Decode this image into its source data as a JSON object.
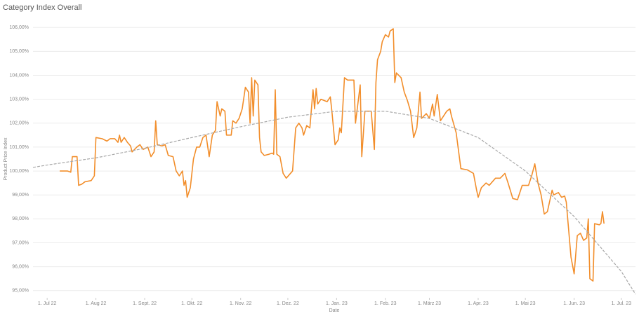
{
  "chart_data": {
    "type": "line",
    "title": "Category Index Overall",
    "x_label": "Date",
    "y_label": "Product Price Index",
    "xlim": [
      "2022-06-22",
      "2023-07-10"
    ],
    "ylim": [
      94.7,
      106.3
    ],
    "grid": true,
    "xticks": [
      {
        "value": "2022-07-01",
        "label": "1. Jul 22"
      },
      {
        "value": "2022-08-01",
        "label": "1. Aug 22"
      },
      {
        "value": "2022-09-01",
        "label": "1. Sept. 22"
      },
      {
        "value": "2022-10-01",
        "label": "1. Okt. 22"
      },
      {
        "value": "2022-11-01",
        "label": "1. Nov. 22"
      },
      {
        "value": "2022-12-01",
        "label": "1. Dez. 22"
      },
      {
        "value": "2023-01-01",
        "label": "1. Jan. 23"
      },
      {
        "value": "2023-02-01",
        "label": "1. Feb. 23"
      },
      {
        "value": "2023-03-01",
        "label": "1. März 23"
      },
      {
        "value": "2023-04-01",
        "label": "1. Apr. 23"
      },
      {
        "value": "2023-05-01",
        "label": "1. Mai 23"
      },
      {
        "value": "2023-06-01",
        "label": "1. Jun. 23"
      },
      {
        "value": "2023-07-01",
        "label": "1. Jul. 23"
      }
    ],
    "yticks": [
      {
        "value": 95,
        "label": "95,00%"
      },
      {
        "value": 96,
        "label": "96,00%"
      },
      {
        "value": 97,
        "label": "97,00%"
      },
      {
        "value": 98,
        "label": "98,00%"
      },
      {
        "value": 99,
        "label": "99,00%"
      },
      {
        "value": 100,
        "label": "100,00%"
      },
      {
        "value": 101,
        "label": "101,00%"
      },
      {
        "value": 102,
        "label": "102,00%"
      },
      {
        "value": 103,
        "label": "103,00%"
      },
      {
        "value": 104,
        "label": "104,00%"
      },
      {
        "value": 105,
        "label": "105,00%"
      },
      {
        "value": 106,
        "label": "106,00%"
      }
    ],
    "series": [
      {
        "color": "#f28e2b",
        "dashed": false,
        "x": [
          "2022-07-09",
          "2022-07-14",
          "2022-07-16",
          "2022-07-17",
          "2022-07-20",
          "2022-07-21",
          "2022-07-23",
          "2022-07-25",
          "2022-07-29",
          "2022-07-31",
          "2022-08-01",
          "2022-08-05",
          "2022-08-08",
          "2022-08-10",
          "2022-08-13",
          "2022-08-15",
          "2022-08-16",
          "2022-08-17",
          "2022-08-19",
          "2022-08-21",
          "2022-08-23",
          "2022-08-24",
          "2022-08-27",
          "2022-08-29",
          "2022-08-31",
          "2022-09-03",
          "2022-09-05",
          "2022-09-07",
          "2022-09-08",
          "2022-09-09",
          "2022-09-12",
          "2022-09-14",
          "2022-09-16",
          "2022-09-19",
          "2022-09-21",
          "2022-09-23",
          "2022-09-25",
          "2022-09-26",
          "2022-09-27",
          "2022-09-28",
          "2022-09-30",
          "2022-10-02",
          "2022-10-04",
          "2022-10-06",
          "2022-10-08",
          "2022-10-10",
          "2022-10-12",
          "2022-10-14",
          "2022-10-16",
          "2022-10-17",
          "2022-10-19",
          "2022-10-20",
          "2022-10-22",
          "2022-10-23",
          "2022-10-26",
          "2022-10-27",
          "2022-10-29",
          "2022-10-31",
          "2022-11-02",
          "2022-11-04",
          "2022-11-06",
          "2022-11-07",
          "2022-11-08",
          "2022-11-09",
          "2022-11-10",
          "2022-11-12",
          "2022-11-13",
          "2022-11-14",
          "2022-11-16",
          "2022-11-19",
          "2022-11-21",
          "2022-11-22",
          "2022-11-23",
          "2022-11-24",
          "2022-11-26",
          "2022-11-28",
          "2022-11-30",
          "2022-12-02",
          "2022-12-04",
          "2022-12-06",
          "2022-12-08",
          "2022-12-10",
          "2022-12-11",
          "2022-12-13",
          "2022-12-15",
          "2022-12-17",
          "2022-12-18",
          "2022-12-19",
          "2022-12-20",
          "2022-12-22",
          "2022-12-26",
          "2022-12-28",
          "2022-12-29",
          "2022-12-31",
          "2023-01-02",
          "2023-01-03",
          "2023-01-04",
          "2023-01-06",
          "2023-01-08",
          "2023-01-12",
          "2023-01-13",
          "2023-01-16",
          "2023-01-17",
          "2023-01-19",
          "2023-01-23",
          "2023-01-25",
          "2023-01-26",
          "2023-01-27",
          "2023-01-29",
          "2023-01-30",
          "2023-02-01",
          "2023-02-03",
          "2023-02-04",
          "2023-02-06",
          "2023-02-07",
          "2023-02-08",
          "2023-02-11",
          "2023-02-13",
          "2023-02-15",
          "2023-02-17",
          "2023-02-19",
          "2023-02-21",
          "2023-02-23",
          "2023-02-24",
          "2023-02-27",
          "2023-03-01",
          "2023-03-03",
          "2023-03-04",
          "2023-03-06",
          "2023-03-08",
          "2023-03-10",
          "2023-03-12",
          "2023-03-14",
          "2023-03-15",
          "2023-03-18",
          "2023-03-21",
          "2023-03-25",
          "2023-03-29",
          "2023-03-31",
          "2023-04-01",
          "2023-04-03",
          "2023-04-06",
          "2023-04-08",
          "2023-04-12",
          "2023-04-15",
          "2023-04-18",
          "2023-04-20",
          "2023-04-23",
          "2023-04-26",
          "2023-04-29",
          "2023-05-03",
          "2023-05-05",
          "2023-05-07",
          "2023-05-09",
          "2023-05-11",
          "2023-05-13",
          "2023-05-15",
          "2023-05-18",
          "2023-05-19",
          "2023-05-22",
          "2023-05-24",
          "2023-05-26",
          "2023-05-27",
          "2023-05-30",
          "2023-06-01",
          "2023-06-03",
          "2023-06-05",
          "2023-06-07",
          "2023-06-09",
          "2023-06-10",
          "2023-06-11",
          "2023-06-13",
          "2023-06-14",
          "2023-06-17",
          "2023-06-18",
          "2023-06-19",
          "2023-06-20"
        ],
        "values": [
          100.0,
          100.0,
          99.95,
          100.6,
          100.6,
          99.4,
          99.45,
          99.55,
          99.6,
          99.8,
          101.4,
          101.35,
          101.25,
          101.35,
          101.35,
          101.2,
          101.5,
          101.2,
          101.4,
          101.2,
          101.05,
          100.8,
          101.0,
          101.1,
          100.9,
          101.0,
          100.6,
          100.8,
          102.1,
          101.1,
          101.05,
          101.1,
          100.65,
          100.6,
          100.0,
          99.8,
          100.0,
          99.4,
          99.6,
          98.9,
          99.3,
          100.5,
          101.0,
          101.0,
          101.4,
          101.5,
          100.6,
          101.5,
          101.7,
          102.9,
          102.3,
          102.6,
          102.5,
          101.5,
          101.5,
          102.1,
          102.0,
          102.2,
          102.6,
          103.5,
          103.3,
          102.0,
          103.9,
          102.3,
          103.8,
          103.6,
          101.4,
          100.8,
          100.65,
          100.7,
          100.75,
          100.7,
          103.4,
          100.7,
          100.6,
          99.9,
          99.7,
          99.85,
          100.0,
          101.8,
          102.0,
          101.8,
          101.5,
          101.9,
          101.8,
          103.4,
          102.6,
          103.45,
          102.8,
          103.0,
          102.9,
          103.1,
          102.5,
          101.1,
          101.3,
          101.8,
          101.6,
          103.9,
          103.8,
          103.8,
          102.0,
          103.6,
          100.6,
          102.5,
          102.5,
          100.9,
          103.7,
          104.65,
          105.0,
          105.4,
          105.7,
          105.6,
          105.85,
          105.95,
          103.7,
          104.1,
          103.9,
          103.3,
          102.95,
          102.5,
          101.4,
          101.8,
          103.3,
          102.2,
          102.4,
          102.2,
          102.8,
          102.3,
          103.2,
          102.1,
          102.3,
          102.5,
          102.6,
          102.3,
          101.6,
          100.1,
          100.05,
          99.9,
          99.2,
          98.9,
          99.3,
          99.5,
          99.4,
          99.7,
          99.7,
          99.9,
          99.5,
          98.85,
          98.8,
          99.4,
          99.4,
          99.8,
          100.3,
          99.5,
          99.0,
          98.2,
          98.3,
          99.2,
          99.0,
          99.1,
          98.9,
          98.95,
          98.7,
          96.4,
          95.7,
          97.3,
          97.4,
          97.1,
          97.2,
          98.0,
          95.5,
          95.4,
          97.8,
          97.75,
          97.8,
          98.3,
          97.8
        ]
      },
      {
        "color": "#a8a8a8",
        "dashed": true,
        "x": [
          "2022-06-22",
          "2022-07-01",
          "2022-08-01",
          "2022-09-01",
          "2022-10-01",
          "2022-11-01",
          "2022-12-01",
          "2023-01-01",
          "2023-02-01",
          "2023-03-01",
          "2023-04-01",
          "2023-05-01",
          "2023-06-01",
          "2023-07-01",
          "2023-07-10"
        ],
        "values": [
          100.15,
          100.25,
          100.55,
          100.95,
          101.4,
          101.85,
          102.25,
          102.5,
          102.5,
          102.2,
          101.4,
          100.0,
          98.1,
          95.8,
          94.85
        ]
      }
    ]
  }
}
